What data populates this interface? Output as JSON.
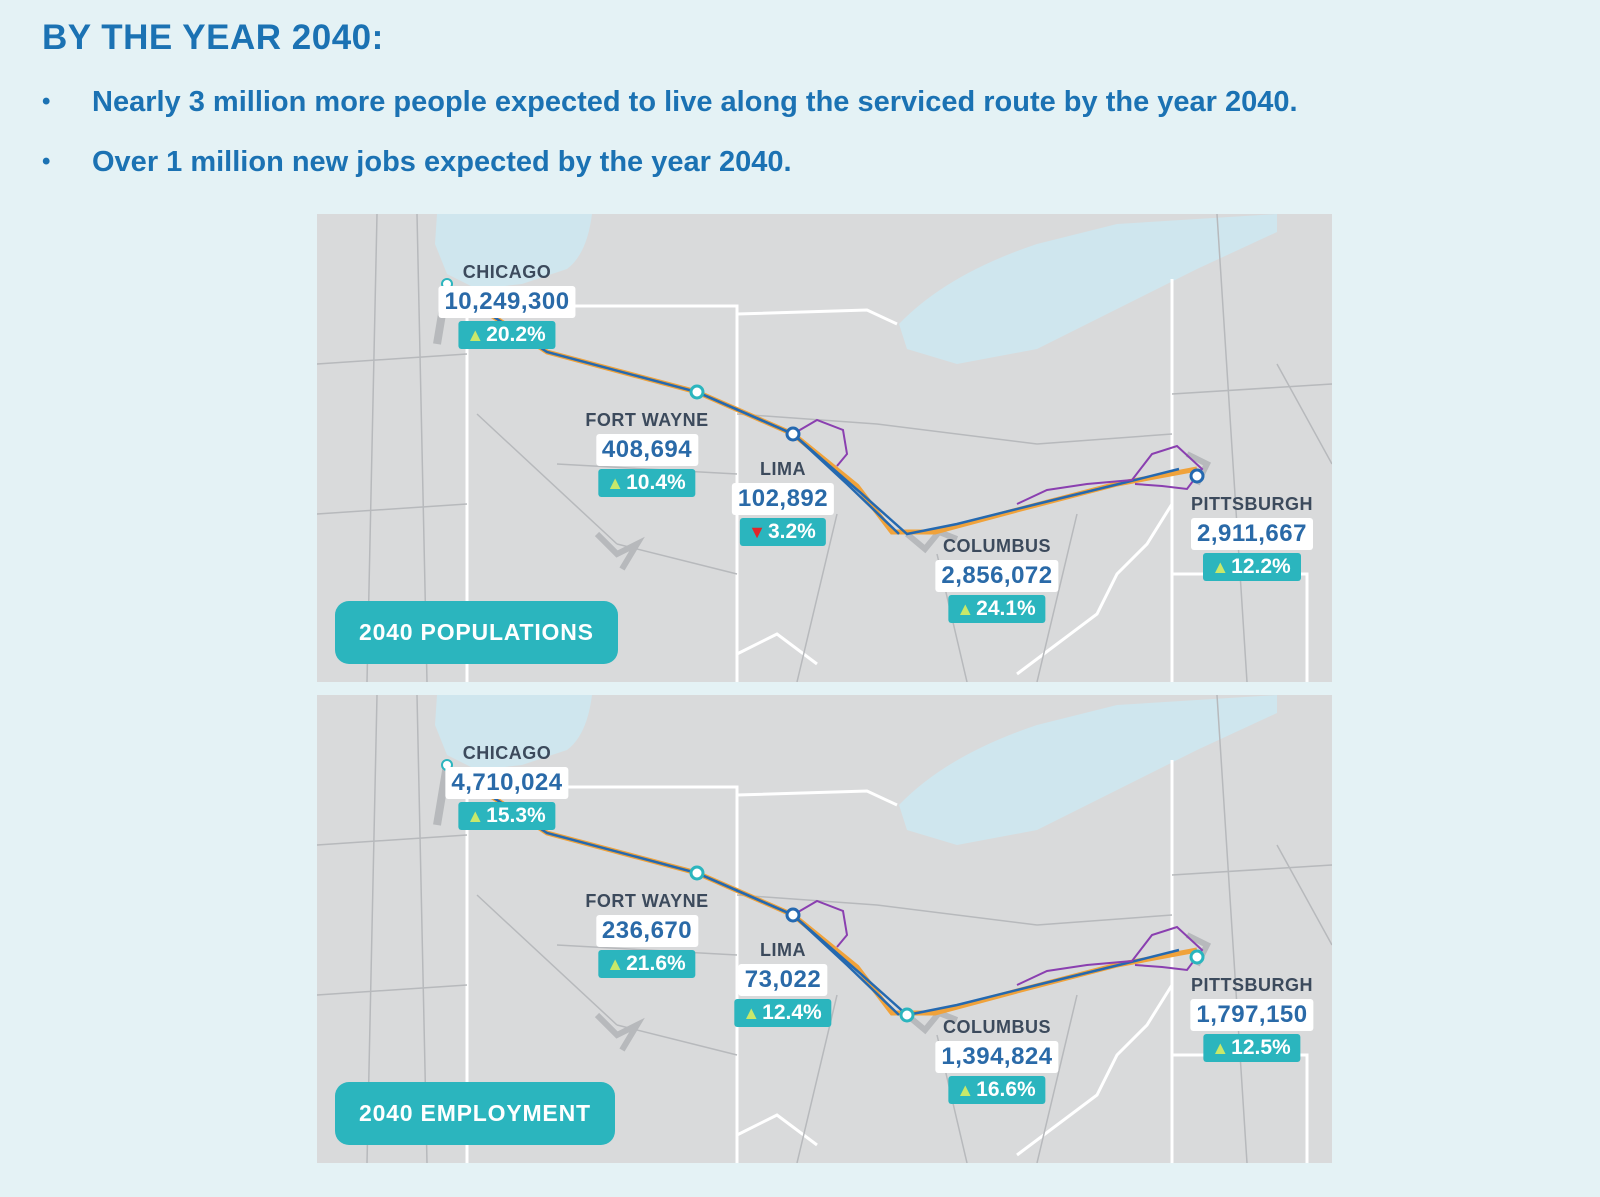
{
  "heading": "BY THE YEAR 2040:",
  "bullets": [
    "Nearly 3 million more people expected to live along the serviced route by the year 2040.",
    "Over 1 million new jobs expected by the year 2040."
  ],
  "maps": [
    {
      "label": "2040 POPULATIONS",
      "cities": [
        {
          "name": "CHICAGO",
          "value": "10,249,300",
          "change": "20.2%",
          "direction": "up"
        },
        {
          "name": "FORT WAYNE",
          "value": "408,694",
          "change": "10.4%",
          "direction": "up"
        },
        {
          "name": "LIMA",
          "value": "102,892",
          "change": "3.2%",
          "direction": "down"
        },
        {
          "name": "COLUMBUS",
          "value": "2,856,072",
          "change": "24.1%",
          "direction": "up"
        },
        {
          "name": "PITTSBURGH",
          "value": "2,911,667",
          "change": "12.2%",
          "direction": "up"
        }
      ]
    },
    {
      "label": "2040 EMPLOYMENT",
      "cities": [
        {
          "name": "CHICAGO",
          "value": "4,710,024",
          "change": "15.3%",
          "direction": "up"
        },
        {
          "name": "FORT WAYNE",
          "value": "236,670",
          "change": "21.6%",
          "direction": "up"
        },
        {
          "name": "LIMA",
          "value": "73,022",
          "change": "12.4%",
          "direction": "up"
        },
        {
          "name": "COLUMBUS",
          "value": "1,394,824",
          "change": "16.6%",
          "direction": "up"
        },
        {
          "name": "PITTSBURGH",
          "value": "1,797,150",
          "change": "12.5%",
          "direction": "up"
        }
      ]
    }
  ],
  "colors": {
    "heading": "#1b72b3",
    "accent": "#2bb5be",
    "lake": "#cfe6ee",
    "route_orange": "#f0a23a",
    "route_blue": "#2569b0",
    "route_purple": "#8a3fb0",
    "arrow_up": "#c8e86a",
    "arrow_down": "#e0262a"
  }
}
